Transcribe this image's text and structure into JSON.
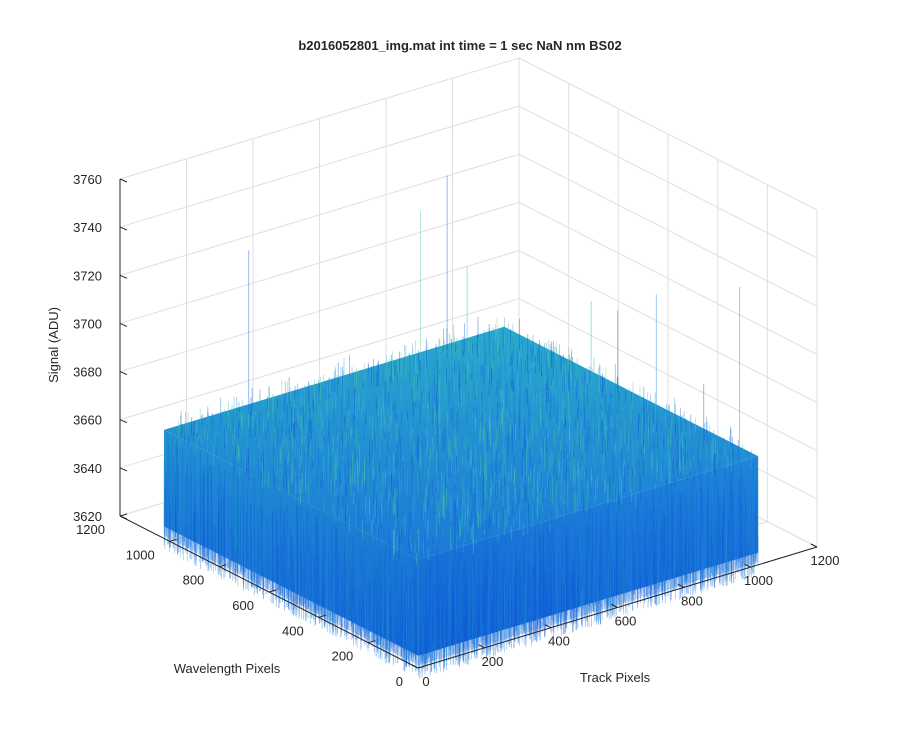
{
  "chart_data": {
    "type": "surface",
    "title": "b2016052801_img.mat int time = 1 sec  NaN nm BS02",
    "xlabel": "Track Pixels",
    "ylabel": "Wavelength Pixels",
    "zlabel": "Signal (ADU)",
    "xlim": [
      0,
      1200
    ],
    "ylim": [
      0,
      1200
    ],
    "zlim": [
      3620,
      3760
    ],
    "x_ticks": [
      "0",
      "200",
      "400",
      "600",
      "800",
      "1000",
      "1200"
    ],
    "y_ticks": [
      "0",
      "200",
      "400",
      "600",
      "800",
      "1000",
      "1200"
    ],
    "z_ticks": [
      "3620",
      "3640",
      "3660",
      "3680",
      "3700",
      "3720",
      "3740",
      "3760"
    ],
    "surface": {
      "x_range": [
        1,
        1024
      ],
      "y_range": [
        1,
        1024
      ],
      "mean_signal": 3642,
      "noise_band": [
        3625,
        3665
      ],
      "max_spike": 3740,
      "colormap": "parula"
    },
    "grid": true,
    "colors": {
      "surface_dark": "#0f5bd6",
      "surface_mid": "#1f86d8",
      "surface_light": "#2bb0c9",
      "surface_highlight": "#52c8a8",
      "axis": "#262626",
      "grid": "#dfdfdf"
    }
  }
}
